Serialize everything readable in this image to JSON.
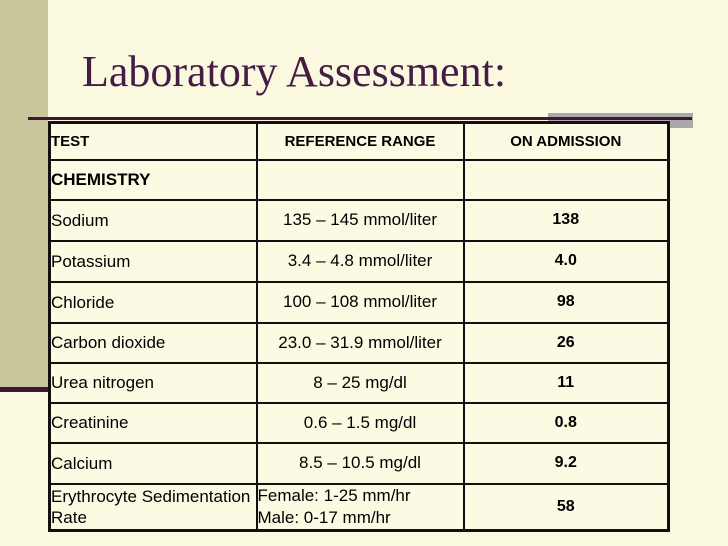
{
  "slide": {
    "title": "Laboratory Assessment:"
  },
  "table": {
    "headers": {
      "test": "TEST",
      "reference": "REFERENCE RANGE",
      "admission": "ON ADMISSION"
    },
    "section_label": "CHEMISTRY",
    "rows": [
      {
        "test": "Sodium",
        "reference": "135 – 145 mmol/liter",
        "admission": "138"
      },
      {
        "test": "Potassium",
        "reference": "3.4 – 4.8 mmol/liter",
        "admission": "4.0"
      },
      {
        "test": "Chloride",
        "reference": "100 – 108 mmol/liter",
        "admission": "98"
      },
      {
        "test": "Carbon dioxide",
        "reference": "23.0 – 31.9 mmol/liter",
        "admission": "26"
      },
      {
        "test": "Urea nitrogen",
        "reference": "8 – 25 mg/dl",
        "admission": "11"
      },
      {
        "test": "Creatinine",
        "reference": "0.6 – 1.5 mg/dl",
        "admission": "0.8"
      },
      {
        "test": "Calcium",
        "reference": "8.5 – 10.5 mg/dl",
        "admission": "9.2"
      },
      {
        "test": "Erythrocyte Sedimentation Rate",
        "reference_lines": [
          "Female: 1-25 mm/hr",
          "Male: 0-17 mm/hr"
        ],
        "admission": "58"
      }
    ]
  },
  "colors": {
    "background": "#FBF8E0",
    "sidebar_olive": "#C9C69B",
    "accent_plum": "#3F1639",
    "accent_gray": "#A9A9A9",
    "title_text": "#451C45",
    "table_border": "#101010",
    "body_text": "#000000"
  }
}
